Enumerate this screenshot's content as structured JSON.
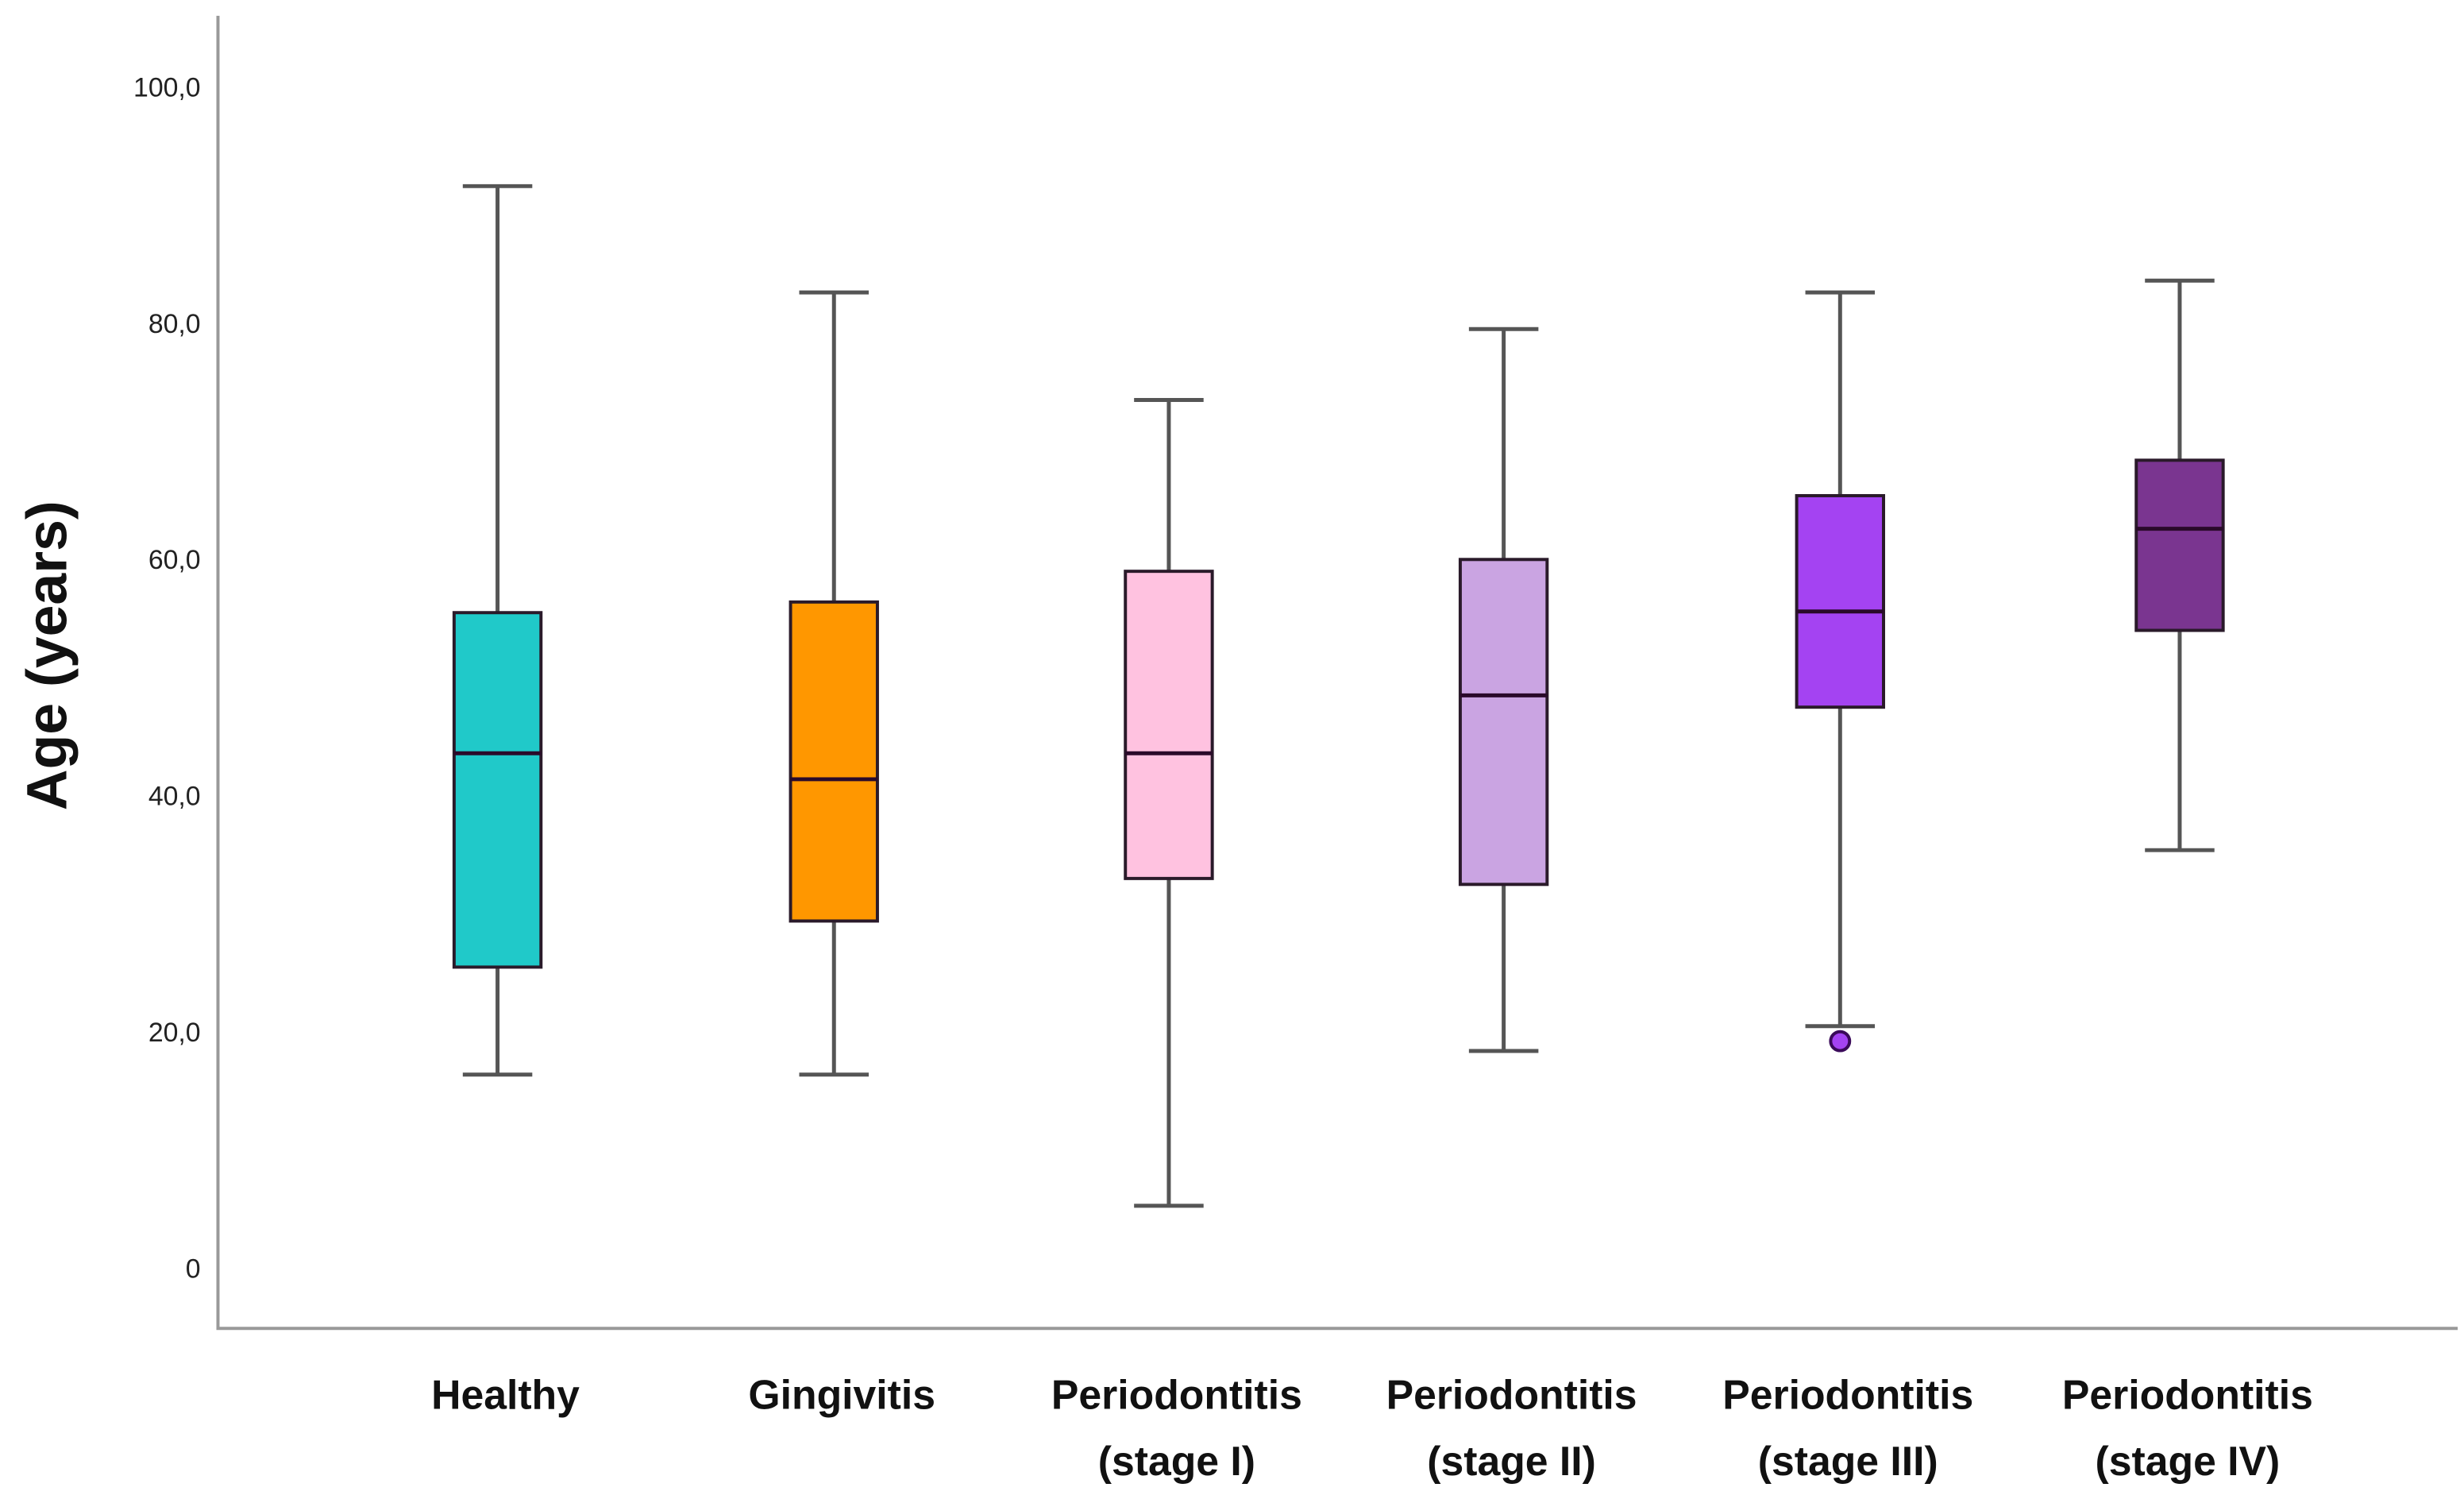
{
  "chart_data": {
    "type": "boxplot",
    "title": "",
    "xlabel": "",
    "ylabel": "Age (years)",
    "ylim": [
      0,
      100
    ],
    "yticks": [
      "0",
      "20,0",
      "40,0",
      "60,0",
      "80,0",
      "100,0"
    ],
    "ytick_values": [
      0,
      20,
      40,
      60,
      80,
      100
    ],
    "grid": false,
    "categories": [
      {
        "line1": "Healthy",
        "line2": ""
      },
      {
        "line1": "Gingivitis",
        "line2": ""
      },
      {
        "line1": "Periodontitis",
        "line2": "(stage I)"
      },
      {
        "line1": "Periodontitis",
        "line2": "(stage II)"
      },
      {
        "line1": "Periodontitis",
        "line2": "(stage III)"
      },
      {
        "line1": "Periodontitis",
        "line2": "(stage IV)"
      }
    ],
    "series": [
      {
        "name": "Healthy",
        "min": 16.4,
        "q1": 25.5,
        "median": 43.6,
        "q3": 55.5,
        "max": 91.6,
        "outliers": [],
        "color": "#20c9c9"
      },
      {
        "name": "Gingivitis",
        "min": 16.4,
        "q1": 29.4,
        "median": 41.4,
        "q3": 56.4,
        "max": 82.6,
        "outliers": [],
        "color": "#ff9700"
      },
      {
        "name": "Periodontitis (stage I)",
        "min": 5.3,
        "q1": 33.0,
        "median": 43.6,
        "q3": 59.0,
        "max": 73.5,
        "outliers": [],
        "color": "#ffc2e0"
      },
      {
        "name": "Periodontitis (stage II)",
        "min": 18.4,
        "q1": 32.5,
        "median": 48.5,
        "q3": 60.0,
        "max": 79.5,
        "outliers": [],
        "color": "#caa4e2"
      },
      {
        "name": "Periodontitis (stage III)",
        "min": 20.5,
        "q1": 47.5,
        "median": 55.6,
        "q3": 65.4,
        "max": 82.6,
        "outliers": [
          19.5
        ],
        "color": "#a443f2"
      },
      {
        "name": "Periodontitis (stage IV)",
        "min": 35.4,
        "q1": 54.0,
        "median": 62.6,
        "q3": 68.4,
        "max": 83.6,
        "outliers": [],
        "color": "#7a3590"
      }
    ]
  }
}
